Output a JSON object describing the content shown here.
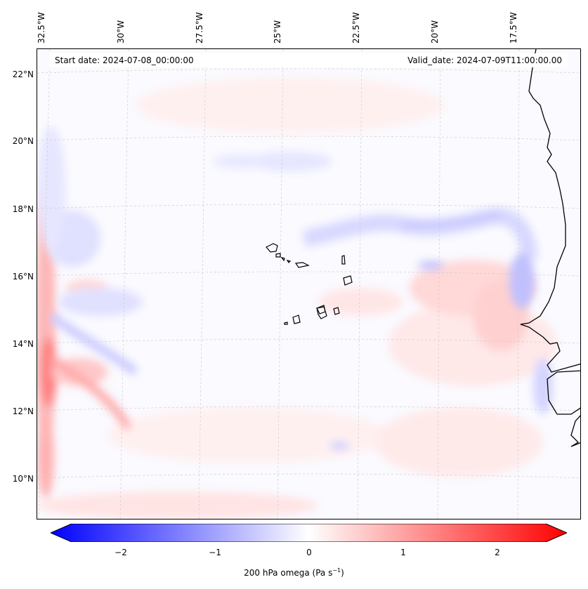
{
  "map": {
    "start_date": "Start date: 2024-07-08_00:00:00",
    "valid_date": "Valid_date: 2024-07-09T11:00:00.00",
    "lon_labels": [
      "32.5°W",
      "30°W",
      "27.5°W",
      "25°W",
      "22.5°W",
      "20°W",
      "17.5°W"
    ],
    "lat_labels": [
      "22°N",
      "20°N",
      "18°N",
      "16°N",
      "14°N",
      "12°N",
      "10°N"
    ],
    "features": [
      "Cape Verde islands",
      "West African coastline"
    ],
    "gridlines": true
  },
  "colorbar": {
    "label_prefix": "200 hPa omega (Pa s",
    "label_exponent": "−1",
    "label_suffix": ")",
    "ticks": [
      "−2",
      "−1",
      "0",
      "1",
      "2"
    ],
    "range": [
      -2.7,
      2.7
    ],
    "cmap": "bwr",
    "colors": {
      "negative": "#0000ff",
      "zero": "#ffffff",
      "positive": "#ff0000"
    }
  }
}
